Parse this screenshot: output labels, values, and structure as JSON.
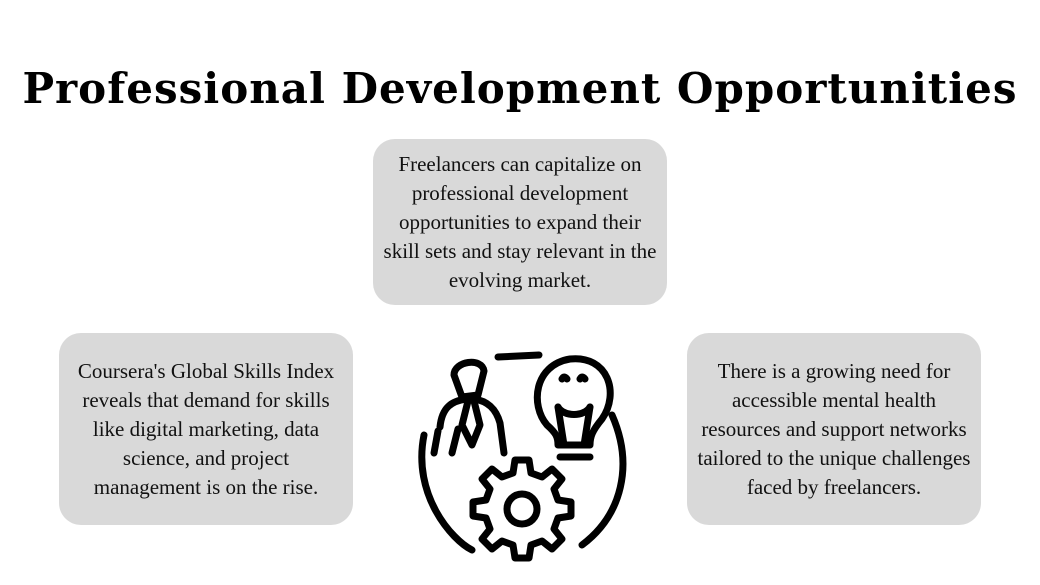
{
  "title": "Professional Development Opportunities",
  "cards": {
    "top": "Freelancers can capitalize on professional development opportunities to expand their skill sets and stay relevant in the evolving market.",
    "left": "Coursera's Global Skills Index reveals that demand for skills like digital marketing, data science, and project management is on the rise.",
    "right": "There is a growing need for accessible mental health resources and support networks tailored to the unique challenges faced by freelancers."
  },
  "icon": "person-lightbulb-gear-icon",
  "colors": {
    "card_bg": "#d9d9d9",
    "text": "#111111",
    "icon_stroke": "#000000"
  }
}
